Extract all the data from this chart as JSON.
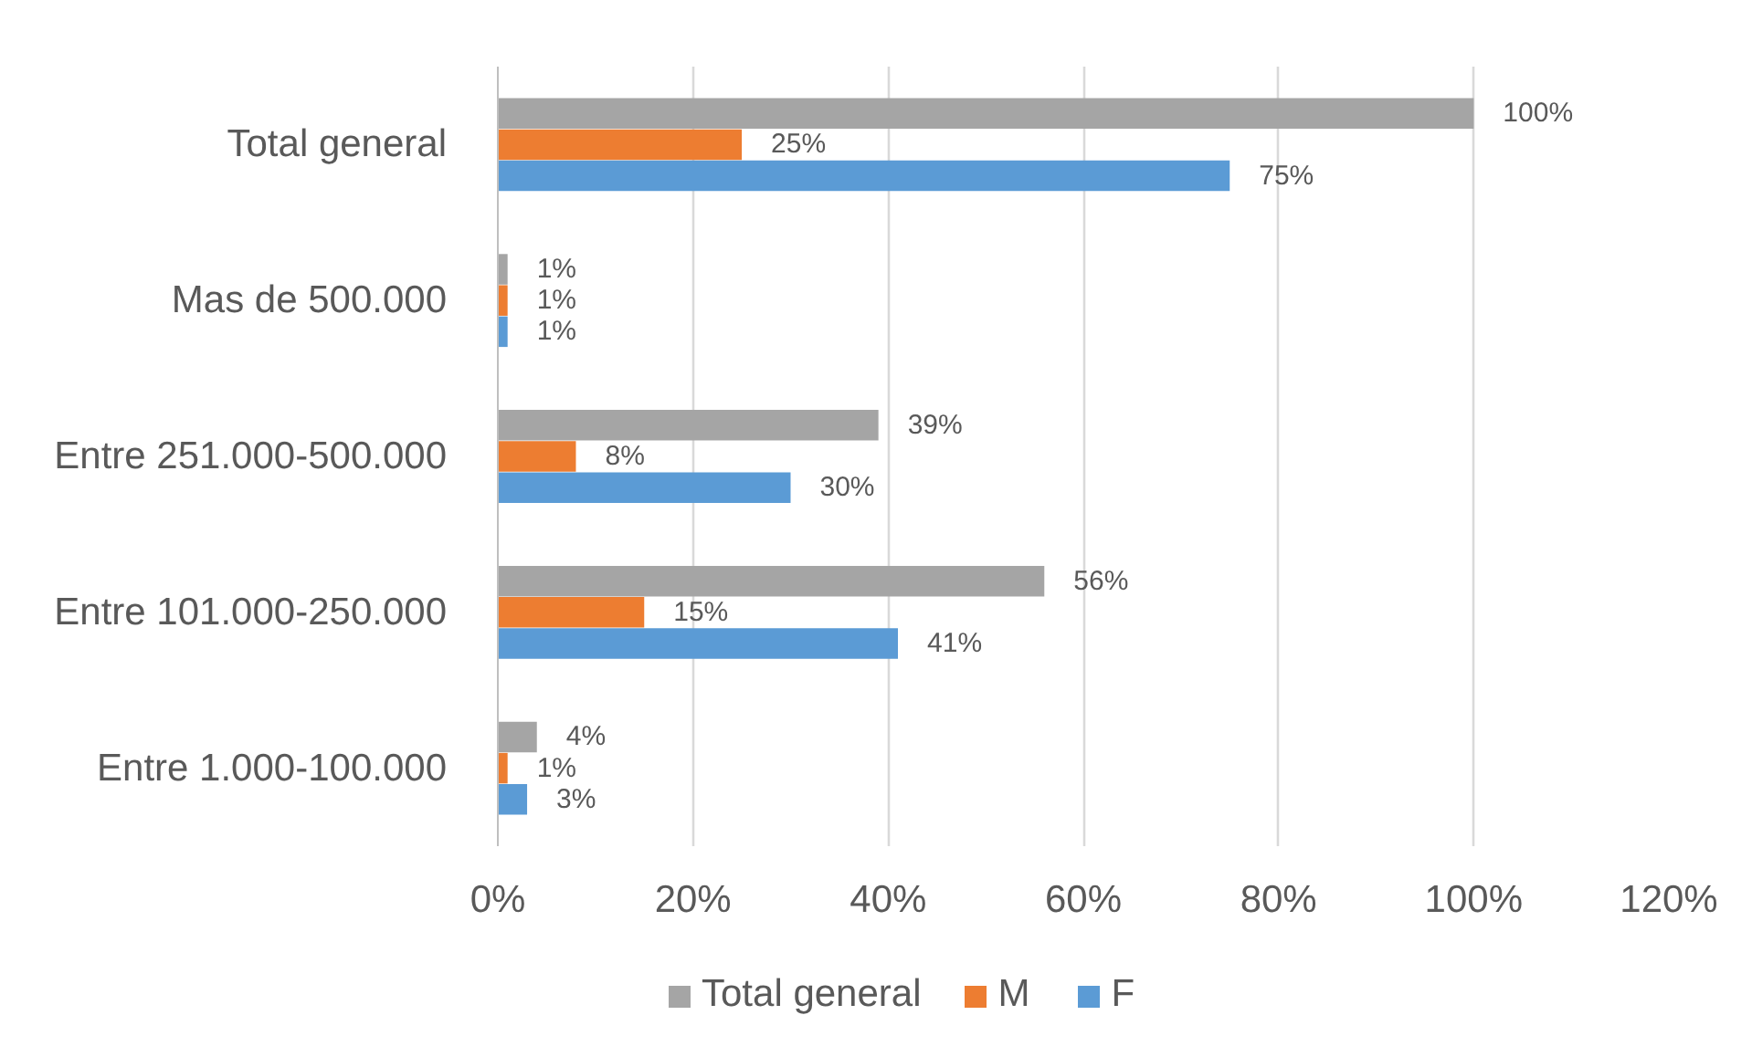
{
  "chart_data": {
    "type": "bar",
    "orientation": "horizontal",
    "categories": [
      "Total general",
      "Mas de 500.000",
      "Entre 251.000-500.000",
      "Entre 101.000-250.000",
      "Entre 1.000-100.000"
    ],
    "series": [
      {
        "name": "Total general",
        "color": "#a5a5a5",
        "values": [
          100,
          1,
          39,
          56,
          4
        ],
        "value_labels": [
          "100%",
          "1%",
          "39%",
          "56%",
          "4%"
        ]
      },
      {
        "name": "M",
        "color": "#ed7d31",
        "values": [
          25,
          1,
          8,
          15,
          1
        ],
        "value_labels": [
          "25%",
          "1%",
          "8%",
          "15%",
          "1%"
        ]
      },
      {
        "name": "F",
        "color": "#5b9bd5",
        "values": [
          75,
          1,
          30,
          41,
          3
        ],
        "value_labels": [
          "75%",
          "1%",
          "30%",
          "41%",
          "3%"
        ]
      }
    ],
    "xlim": [
      0,
      120
    ],
    "xticks": [
      {
        "value": 0,
        "label": "0%"
      },
      {
        "value": 20,
        "label": "20%"
      },
      {
        "value": 40,
        "label": "40%"
      },
      {
        "value": 60,
        "label": "60%"
      },
      {
        "value": 80,
        "label": "80%"
      },
      {
        "value": 100,
        "label": "100%"
      },
      {
        "value": 120,
        "label": "120%"
      }
    ],
    "grid": "x",
    "legend": "bottom"
  }
}
